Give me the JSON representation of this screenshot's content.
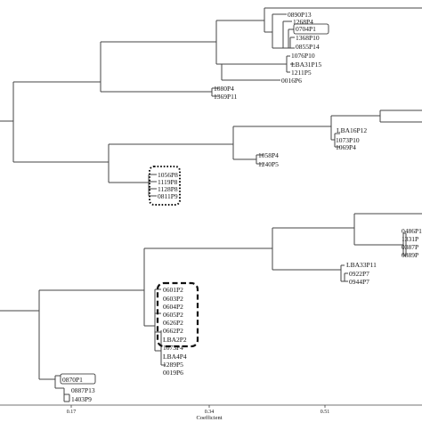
{
  "dendrogram": {
    "colors": {
      "branch": "#444444",
      "text": "#111111",
      "background": "#ffffff"
    },
    "labels": {
      "l_0890P13": "0890P13",
      "l_1268P4": "1268P4",
      "l_0704P1": "0704P1",
      "l_1368P10": "1368P10",
      "l_0855P14": "0855P14",
      "l_1076P10": "1076P10",
      "l_LBA31P15": "LBA31P15",
      "l_1211P5": "1211P5",
      "l_0016P6": "0016P6",
      "l_1080P4": "1080P4",
      "l_1369P11": "1369P11",
      "l_LBA16P12": "LBA16P12",
      "l_1073P10": "1073P10",
      "l_1069P4": "1069P4",
      "l_1058P4": "1058P4",
      "l_1240P5": "1240P5",
      "l_1056P8": "1056P8",
      "l_1119P8": "1119P8",
      "l_1128P8": "1128P8",
      "l_0811P9": "0811P9",
      "l_0486P": "0486P1",
      "l_1331P": "1331P",
      "l_0387P": "0387P",
      "l_0889P": "0889P",
      "l_LBA33P11": "LBA33P11",
      "l_0922P7": "0922P7",
      "l_0944P7": "0944P7",
      "l_0601P2": "0601P2",
      "l_0603P2": "0603P2",
      "l_0604P2": "0604P2",
      "l_0605P2": "0605P2",
      "l_0626P2": "0626P2",
      "l_0662P2": "0662P2",
      "l_LBA2P2": "LBA2P2",
      "l_1073P4": "1073P4",
      "l_LBA4P4": "LBA4P4",
      "l_1289P5": "1289P5",
      "l_0019P6": "0019P6",
      "l_0870P1": "0870P1",
      "l_0887P13": "0887P13",
      "l_1403P9": "1403P9"
    },
    "axis": {
      "title": "Coefficient",
      "ticks": [
        "0.17",
        "0.34",
        "0.51"
      ]
    }
  }
}
